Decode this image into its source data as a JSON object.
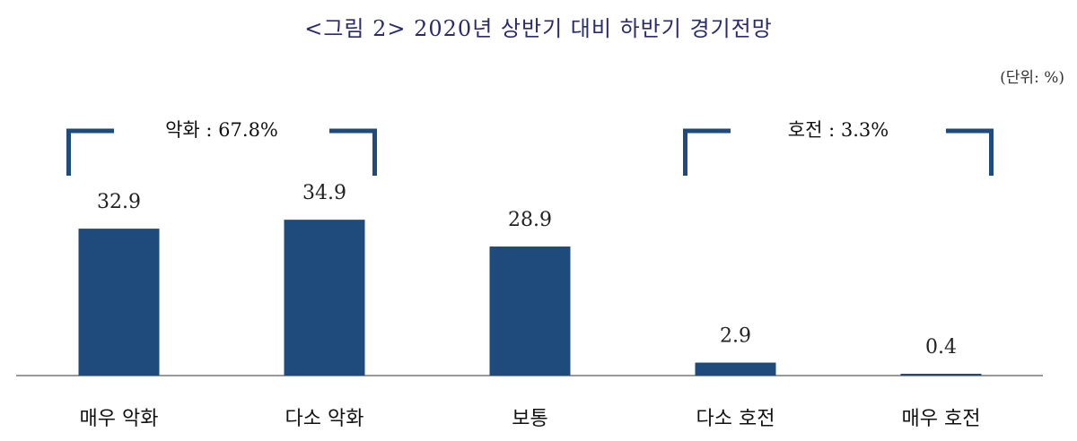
{
  "chart_data": {
    "type": "bar",
    "title": "<그림 2> 2020년 상반기 대비 하반기 경기전망",
    "unit_label": "(단위: %)",
    "categories": [
      "매우 악화",
      "다소 악화",
      "보통",
      "다소 호전",
      "매우 호전"
    ],
    "values": [
      32.9,
      34.9,
      28.9,
      2.9,
      0.4
    ],
    "value_labels": [
      "32.9",
      "34.9",
      "28.9",
      "2.9",
      "0.4"
    ],
    "groups": [
      {
        "label": "악화 : 67.8%",
        "from": 0,
        "to": 1
      },
      {
        "label": "호전 : 3.3%",
        "from": 3,
        "to": 4
      }
    ],
    "ylim": [
      0,
      55
    ],
    "bar_color": "#1f4a7c",
    "grid": false,
    "legend": "none"
  }
}
